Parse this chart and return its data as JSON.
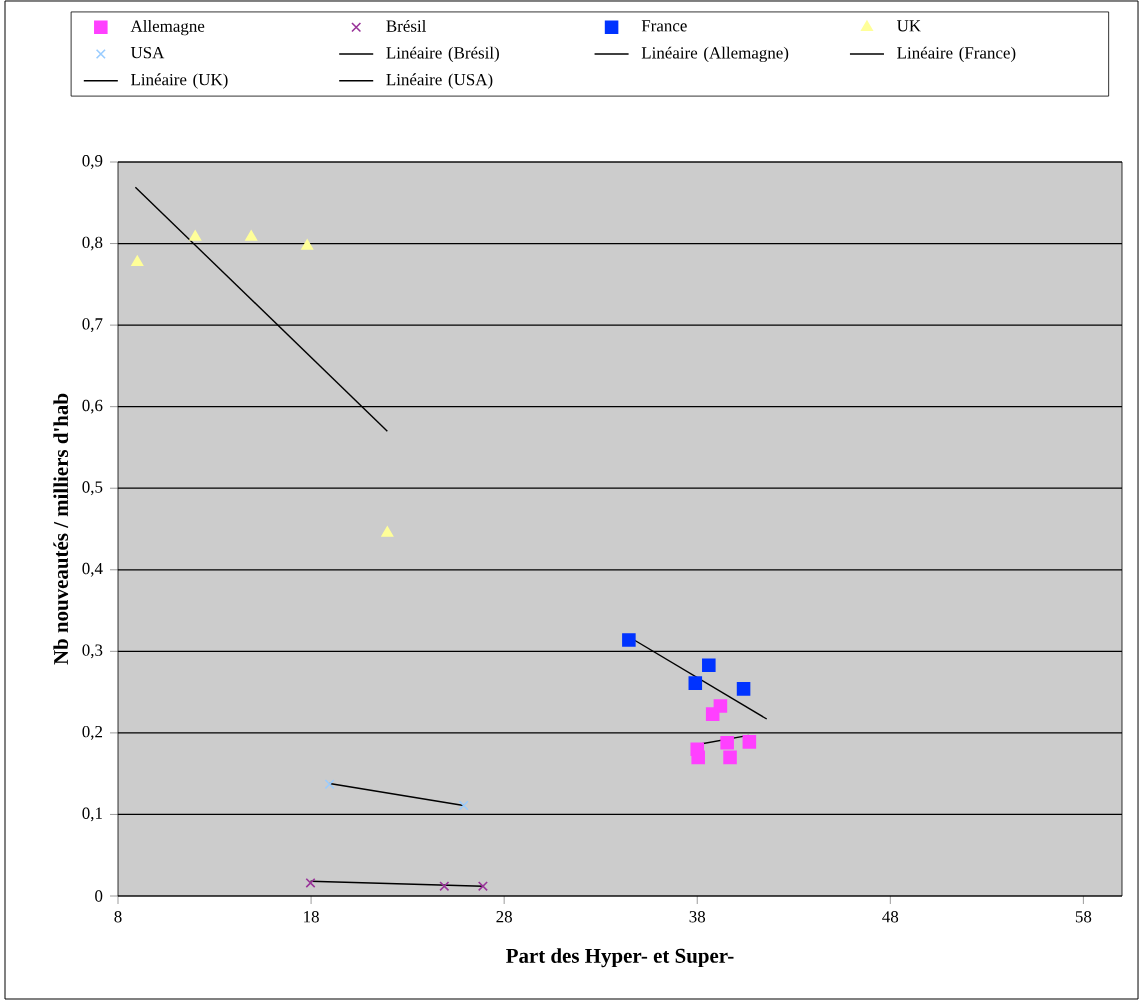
{
  "chart_data": {
    "type": "scatter",
    "xlabel": "Part des Hyper- et Super-",
    "ylabel": "Nb nouveautés / milliers d'hab",
    "xlim": [
      8,
      60
    ],
    "xticks": [
      8,
      18,
      28,
      38,
      48,
      58
    ],
    "ylim": [
      0,
      0.9
    ],
    "yticks": [
      {
        "value": 0,
        "label": "0"
      },
      {
        "value": 0.1,
        "label": "0,1"
      },
      {
        "value": 0.2,
        "label": "0,2"
      },
      {
        "value": 0.3,
        "label": "0,3"
      },
      {
        "value": 0.4,
        "label": "0,4"
      },
      {
        "value": 0.5,
        "label": "0,5"
      },
      {
        "value": 0.6,
        "label": "0,6"
      },
      {
        "value": 0.7,
        "label": "0,7"
      },
      {
        "value": 0.8,
        "label": "0,8"
      },
      {
        "value": 0.9,
        "label": "0,9"
      }
    ],
    "grid": "y",
    "legend": "top",
    "series": [
      {
        "name": "Allemagne",
        "color": "#ff40ff",
        "marker": "square",
        "x": [
          39.2,
          38.8,
          39.55,
          40.7,
          38.0,
          38.05,
          39.7
        ],
        "values": [
          0.233,
          0.223,
          0.188,
          0.189,
          0.18,
          0.17,
          0.17
        ]
      },
      {
        "name": "Brésil",
        "color": "#993399",
        "marker": "cross",
        "x": [
          17.97,
          24.9,
          26.9
        ],
        "values": [
          0.016,
          0.012,
          0.012
        ]
      },
      {
        "name": "France",
        "color": "#0033ff",
        "marker": "square",
        "x": [
          34.46,
          38.6,
          37.9,
          40.4
        ],
        "values": [
          0.314,
          0.283,
          0.261,
          0.254
        ]
      },
      {
        "name": "UK",
        "color": "#ffff99",
        "marker": "triangle",
        "x": [
          9.0,
          12.0,
          14.9,
          17.8,
          21.95
        ],
        "values": [
          0.777,
          0.808,
          0.808,
          0.797,
          0.445
        ]
      },
      {
        "name": "USA",
        "color": "#99ccff",
        "marker": "cross",
        "x": [
          18.96,
          25.9
        ],
        "values": [
          0.137,
          0.111
        ]
      },
      {
        "name": "Linéaire (Brésil)",
        "type": "line",
        "color": "#000000",
        "x": [
          17.97,
          26.9
        ],
        "values": [
          0.018,
          0.012
        ]
      },
      {
        "name": "Linéaire (Allemagne)",
        "type": "line",
        "color": "#000000",
        "x": [
          38.1,
          40.66
        ],
        "values": [
          0.186,
          0.197
        ]
      },
      {
        "name": "Linéaire (France)",
        "type": "line",
        "color": "#000000",
        "x": [
          34.3,
          41.6
        ],
        "values": [
          0.32,
          0.217
        ]
      },
      {
        "name": "Linéaire (UK)",
        "type": "line",
        "color": "#000000",
        "x": [
          8.9,
          21.95
        ],
        "values": [
          0.869,
          0.57
        ]
      },
      {
        "name": "Linéaire (USA)",
        "type": "line",
        "color": "#000000",
        "x": [
          18.96,
          25.9
        ],
        "values": [
          0.138,
          0.111
        ]
      }
    ]
  }
}
